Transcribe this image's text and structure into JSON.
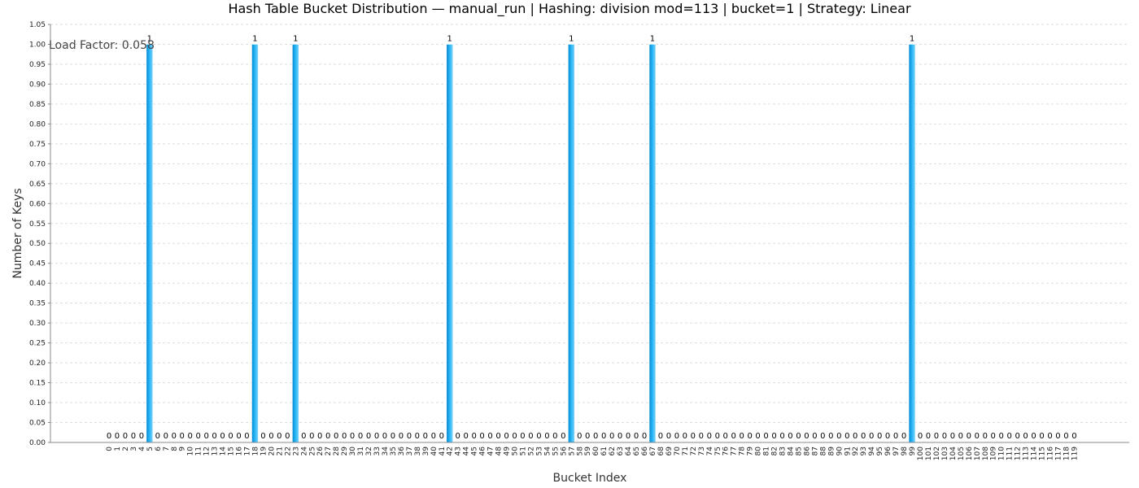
{
  "chart_data": {
    "type": "bar",
    "title": "Hash Table Bucket Distribution — manual_run | Hashing: division mod=113 | bucket=1 | Strategy: Linear",
    "xlabel": "Bucket Index",
    "ylabel": "Number of Keys",
    "annotation": "Load Factor: 0.058",
    "ylim": [
      0,
      1.05
    ],
    "ytick_step": 0.05,
    "grid": true,
    "bucket_count": 120,
    "occupied_buckets": [
      5,
      18,
      23,
      42,
      57,
      67,
      99
    ],
    "colors": {
      "bar": "#29b6f6",
      "bar_dark": "#0288d1",
      "grid": "#dddddd",
      "axis": "#888888"
    }
  }
}
